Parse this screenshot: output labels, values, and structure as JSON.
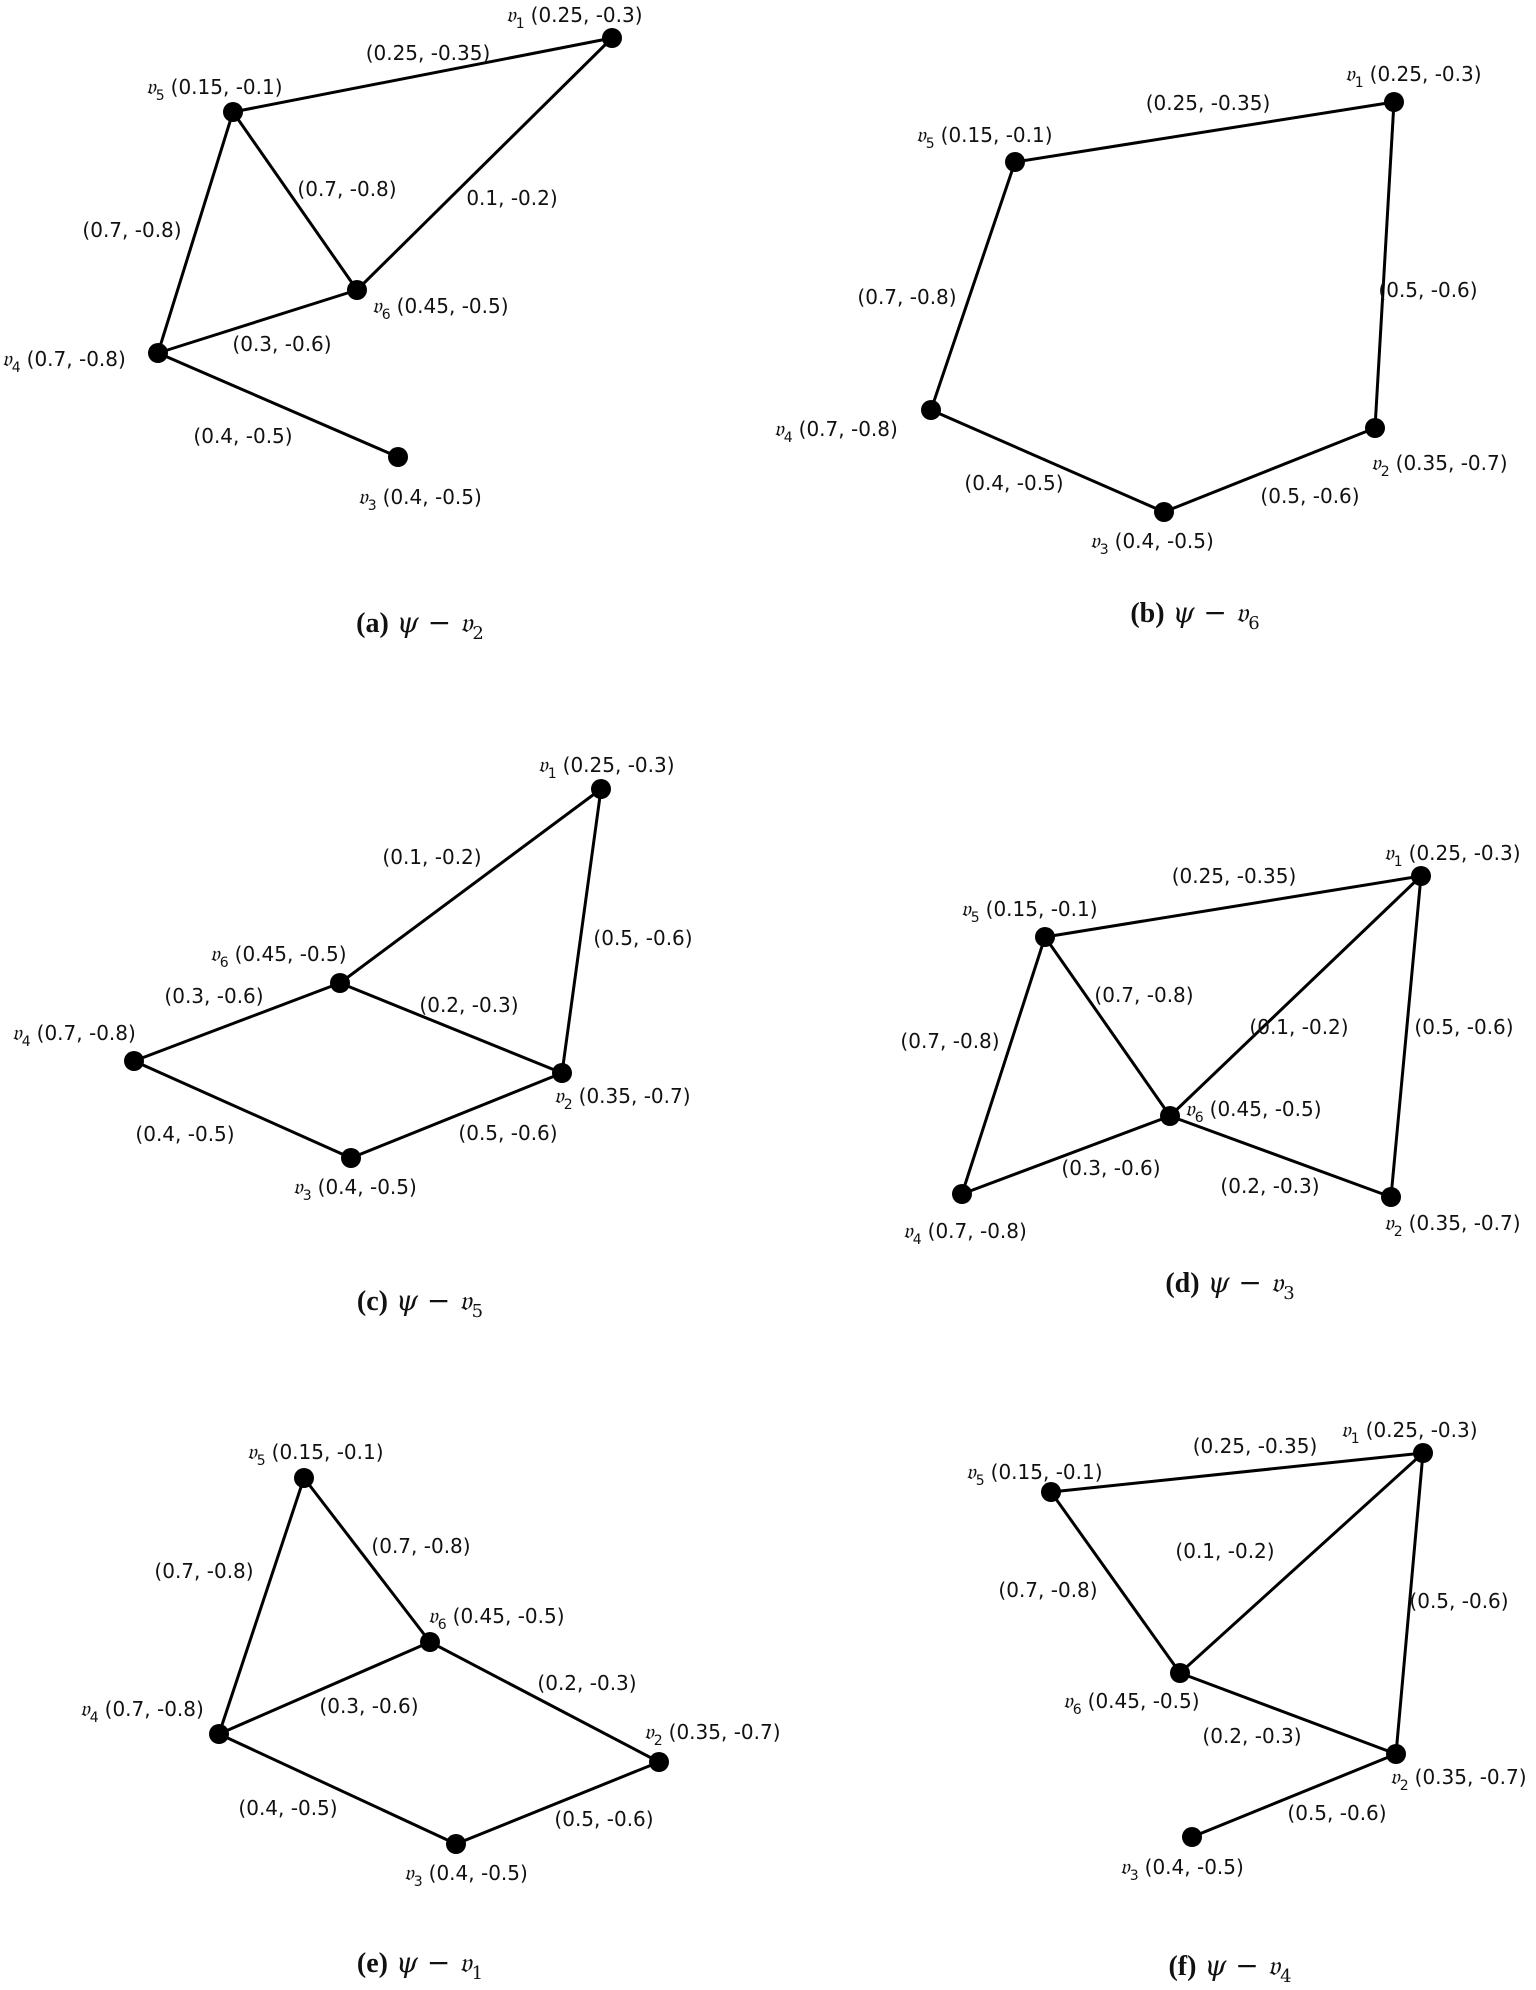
{
  "panels": [
    {
      "id": "a",
      "caption": {
        "letter": "(a)",
        "math": "ψ − 𝔳",
        "sub": "2"
      },
      "vertices": [
        {
          "name": "v1",
          "sym": "𝔳",
          "sub": "1",
          "value": "(0.25, -0.3)"
        },
        {
          "name": "v5",
          "sym": "𝔳",
          "sub": "5",
          "value": "(0.15, -0.1)"
        },
        {
          "name": "v6",
          "sym": "𝔳",
          "sub": "6",
          "value": "(0.45, -0.5)"
        },
        {
          "name": "v4",
          "sym": "𝔳",
          "sub": "4",
          "value": "(0.7, -0.8)"
        },
        {
          "name": "v3",
          "sym": "𝔳",
          "sub": "3",
          "value": "(0.4, -0.5)"
        }
      ],
      "edges": [
        {
          "from": "v5",
          "to": "v1",
          "label": "(0.25, -0.35)"
        },
        {
          "from": "v5",
          "to": "v6",
          "label": "(0.7, -0.8)"
        },
        {
          "from": "v6",
          "to": "v1",
          "label": "0.1, -0.2)"
        },
        {
          "from": "v5",
          "to": "v4",
          "label": "(0.7, -0.8)"
        },
        {
          "from": "v4",
          "to": "v6",
          "label": "(0.3, -0.6)"
        },
        {
          "from": "v4",
          "to": "v3",
          "label": "(0.4, -0.5)"
        }
      ]
    },
    {
      "id": "b",
      "caption": {
        "letter": "(b)",
        "math": "ψ − 𝔳",
        "sub": "6"
      },
      "vertices": [
        {
          "name": "v1",
          "sym": "𝔳",
          "sub": "1",
          "value": "(0.25, -0.3)"
        },
        {
          "name": "v5",
          "sym": "𝔳",
          "sub": "5",
          "value": "(0.15, -0.1)"
        },
        {
          "name": "v4",
          "sym": "𝔳",
          "sub": "4",
          "value": "(0.7, -0.8)"
        },
        {
          "name": "v3",
          "sym": "𝔳",
          "sub": "3",
          "value": "(0.4, -0.5)"
        },
        {
          "name": "v2",
          "sym": "𝔳",
          "sub": "2",
          "value": "(0.35, -0.7)"
        }
      ],
      "edges": [
        {
          "from": "v5",
          "to": "v1",
          "label": "(0.25, -0.35)"
        },
        {
          "from": "v1",
          "to": "v2",
          "label": "(0.5, -0.6)"
        },
        {
          "from": "v5",
          "to": "v4",
          "label": "(0.7, -0.8)"
        },
        {
          "from": "v4",
          "to": "v3",
          "label": "(0.4, -0.5)"
        },
        {
          "from": "v3",
          "to": "v2",
          "label": "(0.5, -0.6)"
        }
      ]
    },
    {
      "id": "c",
      "caption": {
        "letter": "(c)",
        "math": "ψ − 𝔳",
        "sub": "5"
      },
      "vertices": [
        {
          "name": "v1",
          "sym": "𝔳",
          "sub": "1",
          "value": "(0.25, -0.3)"
        },
        {
          "name": "v6",
          "sym": "𝔳",
          "sub": "6",
          "value": "(0.45, -0.5)"
        },
        {
          "name": "v4",
          "sym": "𝔳",
          "sub": "4",
          "value": "(0.7, -0.8)"
        },
        {
          "name": "v2",
          "sym": "𝔳",
          "sub": "2",
          "value": "(0.35, -0.7)"
        },
        {
          "name": "v3",
          "sym": "𝔳",
          "sub": "3",
          "value": "(0.4, -0.5)"
        }
      ],
      "edges": [
        {
          "from": "v6",
          "to": "v1",
          "label": "(0.1, -0.2)"
        },
        {
          "from": "v1",
          "to": "v2",
          "label": "(0.5, -0.6)"
        },
        {
          "from": "v4",
          "to": "v6",
          "label": "(0.3, -0.6)"
        },
        {
          "from": "v6",
          "to": "v2",
          "label": "(0.2, -0.3)"
        },
        {
          "from": "v4",
          "to": "v3",
          "label": "(0.4, -0.5)"
        },
        {
          "from": "v3",
          "to": "v2",
          "label": "(0.5, -0.6)"
        }
      ]
    },
    {
      "id": "d",
      "caption": {
        "letter": "(d)",
        "math": "ψ − 𝔳",
        "sub": "3"
      },
      "vertices": [
        {
          "name": "v1",
          "sym": "𝔳",
          "sub": "1",
          "value": "(0.25, -0.3)"
        },
        {
          "name": "v5",
          "sym": "𝔳",
          "sub": "5",
          "value": "(0.15, -0.1)"
        },
        {
          "name": "v6",
          "sym": "𝔳",
          "sub": "6",
          "value": "(0.45, -0.5)"
        },
        {
          "name": "v4",
          "sym": "𝔳",
          "sub": "4",
          "value": "(0.7, -0.8)"
        },
        {
          "name": "v2",
          "sym": "𝔳",
          "sub": "2",
          "value": "(0.35, -0.7)"
        }
      ],
      "edges": [
        {
          "from": "v5",
          "to": "v1",
          "label": "(0.25, -0.35)"
        },
        {
          "from": "v5",
          "to": "v6",
          "label": "(0.7, -0.8)"
        },
        {
          "from": "v6",
          "to": "v1",
          "label": "(0.1, -0.2)"
        },
        {
          "from": "v1",
          "to": "v2",
          "label": "(0.5, -0.6)"
        },
        {
          "from": "v5",
          "to": "v4",
          "label": "(0.7, -0.8)"
        },
        {
          "from": "v4",
          "to": "v6",
          "label": "(0.3, -0.6)"
        },
        {
          "from": "v6",
          "to": "v2",
          "label": "(0.2, -0.3)"
        }
      ]
    },
    {
      "id": "e",
      "caption": {
        "letter": "(e)",
        "math": "ψ − 𝔳",
        "sub": "1"
      },
      "vertices": [
        {
          "name": "v5",
          "sym": "𝔳",
          "sub": "5",
          "value": "(0.15, -0.1)"
        },
        {
          "name": "v6",
          "sym": "𝔳",
          "sub": "6",
          "value": "(0.45, -0.5)"
        },
        {
          "name": "v4",
          "sym": "𝔳",
          "sub": "4",
          "value": "(0.7, -0.8)"
        },
        {
          "name": "v2",
          "sym": "𝔳",
          "sub": "2",
          "value": "(0.35, -0.7)"
        },
        {
          "name": "v3",
          "sym": "𝔳",
          "sub": "3",
          "value": "(0.4, -0.5)"
        }
      ],
      "edges": [
        {
          "from": "v5",
          "to": "v4",
          "label": "(0.7, -0.8)"
        },
        {
          "from": "v5",
          "to": "v6",
          "label": "(0.7, -0.8)"
        },
        {
          "from": "v4",
          "to": "v6",
          "label": "(0.3, -0.6)"
        },
        {
          "from": "v6",
          "to": "v2",
          "label": "(0.2, -0.3)"
        },
        {
          "from": "v4",
          "to": "v3",
          "label": "(0.4, -0.5)"
        },
        {
          "from": "v3",
          "to": "v2",
          "label": "(0.5, -0.6)"
        }
      ]
    },
    {
      "id": "f",
      "caption": {
        "letter": "(f)",
        "math": "ψ − 𝔳",
        "sub": "4"
      },
      "vertices": [
        {
          "name": "v5",
          "sym": "𝔳",
          "sub": "5",
          "value": "(0.15, -0.1)"
        },
        {
          "name": "v1",
          "sym": "𝔳",
          "sub": "1",
          "value": "(0.25, -0.3)"
        },
        {
          "name": "v6",
          "sym": "𝔳",
          "sub": "6",
          "value": "(0.45, -0.5)"
        },
        {
          "name": "v2",
          "sym": "𝔳",
          "sub": "2",
          "value": "(0.35, -0.7)"
        },
        {
          "name": "v3",
          "sym": "𝔳",
          "sub": "3",
          "value": "(0.4, -0.5)"
        }
      ],
      "edges": [
        {
          "from": "v5",
          "to": "v1",
          "label": "(0.25, -0.35)"
        },
        {
          "from": "v6",
          "to": "v1",
          "label": "(0.1, -0.2)"
        },
        {
          "from": "v5",
          "to": "v6",
          "label": "(0.7, -0.8)"
        },
        {
          "from": "v1",
          "to": "v2",
          "label": "(0.5, -0.6)"
        },
        {
          "from": "v6",
          "to": "v2",
          "label": "(0.2, -0.3)"
        },
        {
          "from": "v2",
          "to": "v3",
          "label": "(0.5, -0.6)"
        }
      ]
    }
  ]
}
